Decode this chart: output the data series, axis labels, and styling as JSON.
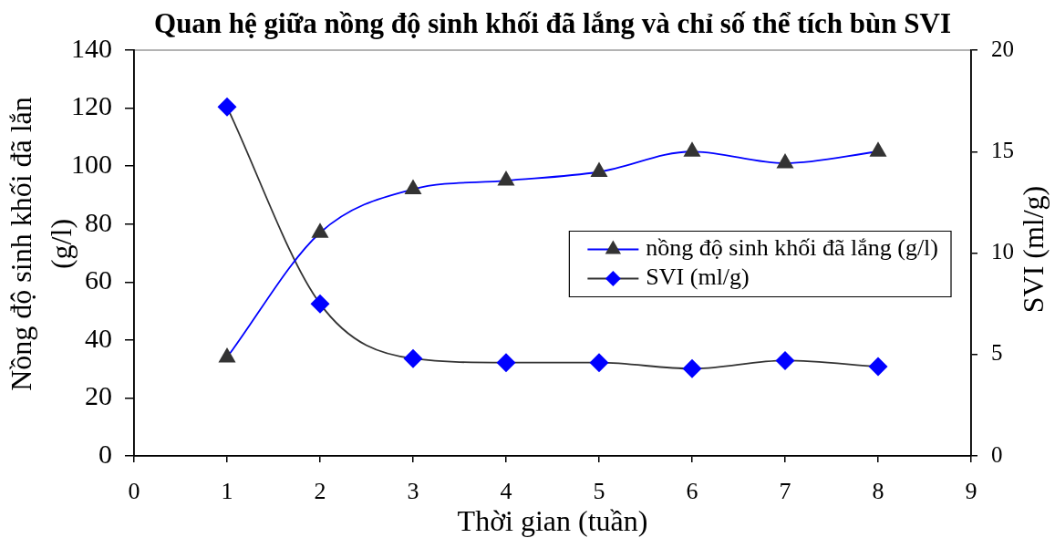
{
  "chart_data": {
    "type": "line",
    "title": "Quan hệ giữa nồng độ sinh khối đã lắng và chỉ số thể tích bùn SVI",
    "xlabel": "Thời gian (tuần)",
    "ylabel": "Nồng độ sinh khối đã lắn\n(g/l)",
    "y2label": "SVI (ml/g)",
    "x": [
      1,
      2,
      3,
      4,
      5,
      6,
      7,
      8
    ],
    "xlim": [
      0,
      9
    ],
    "xticks": [
      0,
      1,
      2,
      3,
      4,
      5,
      6,
      7,
      8,
      9
    ],
    "ylim": [
      0,
      140
    ],
    "yticks": [
      0,
      20,
      40,
      60,
      80,
      100,
      120,
      140
    ],
    "y2lim": [
      0,
      20
    ],
    "y2ticks": [
      0,
      5,
      10,
      15,
      20
    ],
    "series": [
      {
        "name": "nồng độ sinh khối đã lắng (g/l)",
        "color": "#0000ff",
        "colors": [
          "#333333",
          "#333333",
          "#333333",
          "#333333",
          "#333333",
          "#333333",
          "#333333",
          "#333333"
        ],
        "marker": "triangle",
        "values": [
          34,
          77,
          92,
          95,
          98,
          105,
          101,
          105
        ]
      },
      {
        "name": "SVI (ml/g)",
        "color": "#333333",
        "colors": [
          "#0000ff",
          "#0000ff",
          "#0000ff",
          "#0000ff",
          "#0000ff",
          "#0000ff",
          "#0000ff",
          "#0000ff"
        ],
        "marker": "diamond",
        "axis": "y2",
        "values": [
          17.2,
          7.5,
          4.8,
          4.6,
          4.6,
          4.3,
          4.7,
          4.4
        ]
      }
    ],
    "legend": "right"
  }
}
